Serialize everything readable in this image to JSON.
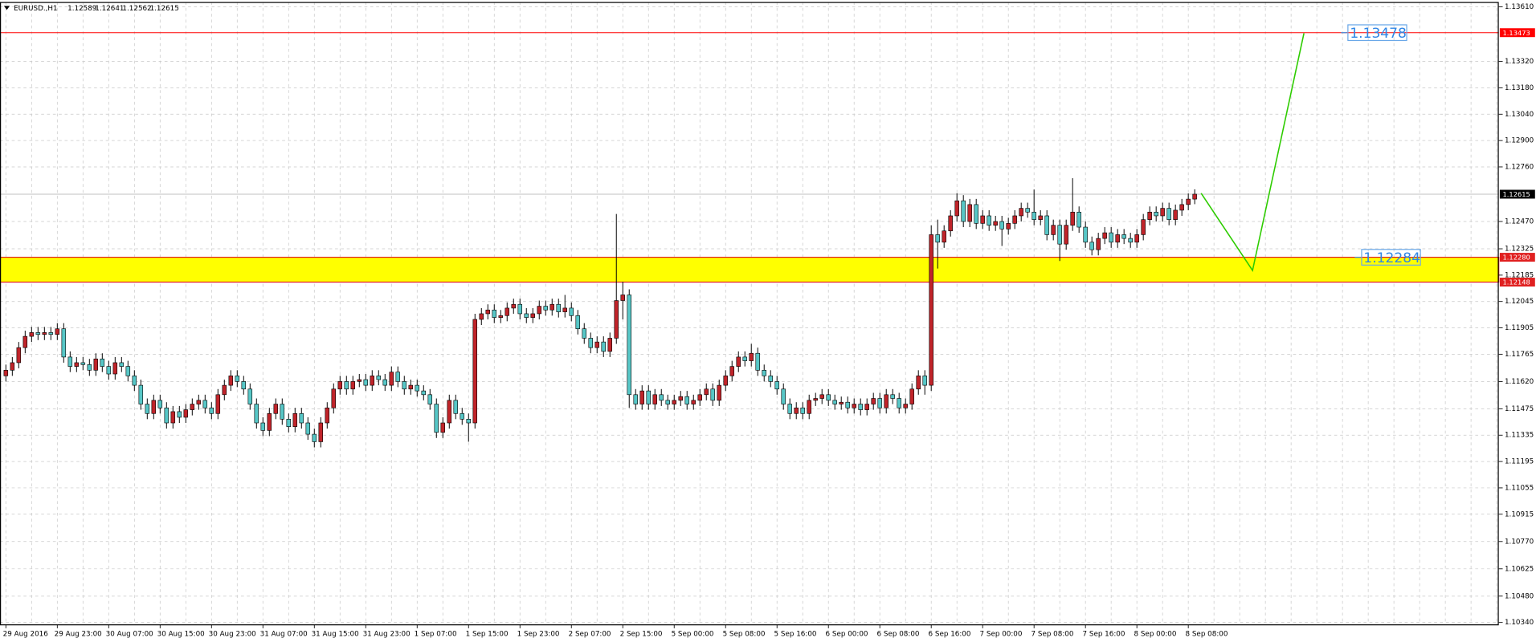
{
  "chart_data": {
    "type": "candlestick",
    "title": "EURUSD.,H1",
    "quote": [
      1.12589,
      1.12641,
      1.12562,
      1.12615
    ],
    "up_color": "#c0242a",
    "down_color": "#57c7c7",
    "grid": true,
    "ylim": [
      1.1033,
      1.13636
    ],
    "yticks": [
      {
        "value": 1.1361,
        "label": "1.13610"
      },
      {
        "value": 1.1332,
        "label": "1.13320"
      },
      {
        "value": 1.1318,
        "label": "1.13180"
      },
      {
        "value": 1.1304,
        "label": "1.13040"
      },
      {
        "value": 1.129,
        "label": "1.12900"
      },
      {
        "value": 1.1276,
        "label": "1.12760"
      },
      {
        "value": 1.1247,
        "label": "1.12470"
      },
      1.12325,
      1.12185,
      1.12045,
      1.11905,
      1.11765,
      {
        "value": 1.1162,
        "label": "1.11620"
      },
      1.11475,
      1.11335,
      1.11195,
      1.11055,
      1.10915,
      {
        "value": 1.1077,
        "label": "1.10770"
      },
      1.10625,
      {
        "value": 1.1048,
        "label": "1.10480"
      },
      {
        "value": 1.1034,
        "label": "1.10340"
      }
    ],
    "categories": [
      "29 Aug 2016",
      null,
      null,
      null,
      null,
      null,
      null,
      null,
      "29 Aug 23:00",
      null,
      null,
      null,
      null,
      null,
      null,
      null,
      "30 Aug 07:00",
      null,
      null,
      null,
      null,
      null,
      null,
      null,
      "30 Aug 15:00",
      null,
      null,
      null,
      null,
      null,
      null,
      null,
      "30 Aug 23:00",
      null,
      null,
      null,
      null,
      null,
      null,
      null,
      "31 Aug 07:00",
      null,
      null,
      null,
      null,
      null,
      null,
      null,
      "31 Aug 15:00",
      null,
      null,
      null,
      null,
      null,
      null,
      null,
      "31 Aug 23:00",
      null,
      null,
      null,
      null,
      null,
      null,
      null,
      "1 Sep 07:00",
      null,
      null,
      null,
      null,
      null,
      null,
      null,
      "1 Sep 15:00",
      null,
      null,
      null,
      null,
      null,
      null,
      null,
      "1 Sep 23:00",
      null,
      null,
      null,
      null,
      null,
      null,
      null,
      "2 Sep 07:00",
      null,
      null,
      null,
      null,
      null,
      null,
      null,
      "2 Sep 15:00",
      null,
      null,
      null,
      null,
      null,
      null,
      null,
      "5 Sep 00:00",
      null,
      null,
      null,
      null,
      null,
      null,
      null,
      "5 Sep 08:00",
      null,
      null,
      null,
      null,
      null,
      null,
      null,
      "5 Sep 16:00",
      null,
      null,
      null,
      null,
      null,
      null,
      null,
      "6 Sep 00:00",
      null,
      null,
      null,
      null,
      null,
      null,
      null,
      "6 Sep 08:00",
      null,
      null,
      null,
      null,
      null,
      null,
      null,
      "6 Sep 16:00",
      null,
      null,
      null,
      null,
      null,
      null,
      null,
      "7 Sep 00:00",
      null,
      null,
      null,
      null,
      null,
      null,
      null,
      "7 Sep 08:00",
      null,
      null,
      null,
      null,
      null,
      null,
      null,
      "7 Sep 16:00",
      null,
      null,
      null,
      null,
      null,
      null,
      null,
      "8 Sep 00:00",
      null,
      null,
      null,
      null,
      null,
      null,
      null,
      "8 Sep 08:00",
      null
    ],
    "open": [
      1.1165,
      1.1168,
      1.1172,
      1.118,
      1.1186,
      1.1188,
      1.1187,
      1.1188,
      1.1187,
      1.119,
      1.1175,
      1.117,
      1.1172,
      1.1171,
      1.1168,
      1.1174,
      1.117,
      1.1166,
      1.1172,
      1.117,
      1.1165,
      1.116,
      1.115,
      1.1145,
      1.1152,
      1.1148,
      1.114,
      1.1146,
      1.1143,
      1.1147,
      1.115,
      1.1152,
      1.1148,
      1.1145,
      1.1155,
      1.116,
      1.1165,
      1.1162,
      1.1158,
      1.115,
      1.114,
      1.1136,
      1.1145,
      1.115,
      1.1142,
      1.1138,
      1.1145,
      1.114,
      1.1134,
      1.113,
      1.114,
      1.1148,
      1.1158,
      1.1162,
      1.1158,
      1.1162,
      1.1163,
      1.116,
      1.1165,
      1.1163,
      1.116,
      1.1167,
      1.1162,
      1.1158,
      1.116,
      1.1157,
      1.1155,
      1.115,
      1.1135,
      1.114,
      1.1152,
      1.1145,
      1.1142,
      1.114,
      1.1195,
      1.1198,
      1.12,
      1.1196,
      1.1197,
      1.1201,
      1.1203,
      1.1198,
      1.1196,
      1.1198,
      1.1202,
      1.12,
      1.1203,
      1.1199,
      1.1201,
      1.1197,
      1.119,
      1.1185,
      1.118,
      1.1183,
      1.1178,
      1.1185,
      1.1205,
      1.1208,
      1.1155,
      1.115,
      1.1157,
      1.115,
      1.1155,
      1.1152,
      1.115,
      1.1152,
      1.1154,
      1.115,
      1.1152,
      1.1155,
      1.1158,
      1.1152,
      1.116,
      1.1165,
      1.117,
      1.1175,
      1.1173,
      1.1177,
      1.1168,
      1.1165,
      1.1162,
      1.1158,
      1.115,
      1.1145,
      1.1148,
      1.1145,
      1.1152,
      1.1153,
      1.1155,
      1.1152,
      1.115,
      1.1151,
      1.1148,
      1.115,
      1.1147,
      1.115,
      1.1153,
      1.1148,
      1.1155,
      1.1153,
      1.1148,
      1.115,
      1.1158,
      1.1165,
      1.116,
      1.124,
      1.1236,
      1.1242,
      1.125,
      1.1258,
      1.1247,
      1.1256,
      1.1246,
      1.125,
      1.1245,
      1.1247,
      1.1243,
      1.1246,
      1.125,
      1.1254,
      1.1252,
      1.1248,
      1.125,
      1.124,
      1.1245,
      1.1235,
      1.1245,
      1.1252,
      1.1244,
      1.1236,
      1.1232,
      1.1238,
      1.1241,
      1.1236,
      1.124,
      1.1238,
      1.1236,
      1.124,
      1.1248,
      1.1252,
      1.125,
      1.1254,
      1.1248,
      1.1253,
      1.1256,
      1.12589
    ],
    "high": [
      1.1171,
      1.1175,
      1.1183,
      1.1189,
      1.1191,
      1.1191,
      1.1191,
      1.1191,
      1.1193,
      1.1193,
      1.1178,
      1.1175,
      1.1175,
      1.1174,
      1.1177,
      1.1177,
      1.1173,
      1.1175,
      1.1175,
      1.1173,
      1.1168,
      1.1163,
      1.1153,
      1.1155,
      1.1155,
      1.1151,
      1.1149,
      1.1149,
      1.115,
      1.1153,
      1.1155,
      1.1155,
      1.1151,
      1.1158,
      1.1163,
      1.1168,
      1.1168,
      1.1165,
      1.1161,
      1.1153,
      1.1143,
      1.1148,
      1.1153,
      1.1153,
      1.1145,
      1.1148,
      1.1148,
      1.1143,
      1.1137,
      1.1143,
      1.1151,
      1.1161,
      1.1165,
      1.1165,
      1.1165,
      1.1166,
      1.1166,
      1.1168,
      1.1168,
      1.1166,
      1.117,
      1.117,
      1.1165,
      1.1163,
      1.1163,
      1.116,
      1.1158,
      1.1153,
      1.1143,
      1.1155,
      1.1155,
      1.1148,
      1.1145,
      1.1198,
      1.1201,
      1.1203,
      1.1203,
      1.12,
      1.1204,
      1.1206,
      1.1206,
      1.1201,
      1.1201,
      1.1205,
      1.1205,
      1.1206,
      1.1206,
      1.1208,
      1.1204,
      1.12,
      1.1193,
      1.1188,
      1.1186,
      1.1186,
      1.1188,
      1.1251,
      1.1215,
      1.1211,
      1.1158,
      1.116,
      1.116,
      1.1158,
      1.1158,
      1.1155,
      1.1155,
      1.1157,
      1.1157,
      1.1155,
      1.1158,
      1.1161,
      1.1161,
      1.1163,
      1.1168,
      1.1173,
      1.1178,
      1.1178,
      1.1182,
      1.118,
      1.1171,
      1.1168,
      1.1165,
      1.1161,
      1.1153,
      1.1151,
      1.1151,
      1.1155,
      1.1156,
      1.1158,
      1.1158,
      1.1155,
      1.1154,
      1.1154,
      1.1153,
      1.1153,
      1.1153,
      1.1156,
      1.1156,
      1.1158,
      1.1158,
      1.1156,
      1.1153,
      1.1161,
      1.1168,
      1.1168,
      1.1245,
      1.1248,
      1.1245,
      1.1253,
      1.1262,
      1.1261,
      1.1259,
      1.1259,
      1.1253,
      1.1253,
      1.125,
      1.125,
      1.1249,
      1.1253,
      1.1257,
      1.1257,
      1.1264,
      1.1253,
      1.1253,
      1.1248,
      1.1248,
      1.1248,
      1.127,
      1.1255,
      1.1247,
      1.1239,
      1.1241,
      1.1244,
      1.1244,
      1.1243,
      1.1243,
      1.1241,
      1.1243,
      1.1251,
      1.1255,
      1.1255,
      1.1257,
      1.1257,
      1.1256,
      1.1259,
      1.12619,
      1.12641
    ],
    "low": [
      1.1162,
      1.1165,
      1.1169,
      1.1177,
      1.1183,
      1.1184,
      1.1184,
      1.1184,
      1.1184,
      1.1172,
      1.1167,
      1.1167,
      1.1168,
      1.1165,
      1.1165,
      1.1167,
      1.1163,
      1.1163,
      1.1167,
      1.1162,
      1.1157,
      1.1147,
      1.1142,
      1.1142,
      1.1145,
      1.1137,
      1.1137,
      1.114,
      1.114,
      1.1144,
      1.1147,
      1.1145,
      1.1142,
      1.1142,
      1.1152,
      1.1157,
      1.1159,
      1.1155,
      1.1147,
      1.1137,
      1.1133,
      1.1133,
      1.1142,
      1.1139,
      1.1135,
      1.1135,
      1.1137,
      1.1131,
      1.1127,
      1.1127,
      1.1137,
      1.1145,
      1.1155,
      1.1155,
      1.1155,
      1.1159,
      1.1157,
      1.1157,
      1.116,
      1.1157,
      1.1157,
      1.1159,
      1.1155,
      1.1155,
      1.1154,
      1.1152,
      1.1147,
      1.1132,
      1.1132,
      1.1137,
      1.1142,
      1.1139,
      1.113,
      1.1137,
      1.1192,
      1.1195,
      1.1193,
      1.1193,
      1.1194,
      1.1198,
      1.1195,
      1.1193,
      1.1193,
      1.1195,
      1.1197,
      1.1197,
      1.1196,
      1.1196,
      1.1194,
      1.1187,
      1.1182,
      1.1177,
      1.1177,
      1.1175,
      1.1175,
      1.1182,
      1.1195,
      1.1148,
      1.1147,
      1.1147,
      1.1147,
      1.1147,
      1.1149,
      1.1147,
      1.1147,
      1.1149,
      1.1147,
      1.1147,
      1.1149,
      1.1152,
      1.1149,
      1.1149,
      1.1157,
      1.1162,
      1.1167,
      1.117,
      1.117,
      1.1165,
      1.1162,
      1.1159,
      1.1155,
      1.1147,
      1.1142,
      1.1142,
      1.1142,
      1.1142,
      1.1149,
      1.115,
      1.1149,
      1.1147,
      1.1147,
      1.1145,
      1.1145,
      1.1144,
      1.1144,
      1.1147,
      1.1145,
      1.1145,
      1.115,
      1.1145,
      1.1145,
      1.1147,
      1.1155,
      1.1155,
      1.1157,
      1.1222,
      1.1233,
      1.1239,
      1.1247,
      1.1244,
      1.1244,
      1.1243,
      1.1243,
      1.1242,
      1.1242,
      1.1234,
      1.124,
      1.1243,
      1.1247,
      1.1249,
      1.1245,
      1.1245,
      1.1237,
      1.1237,
      1.1226,
      1.1232,
      1.1242,
      1.1241,
      1.1233,
      1.1229,
      1.1229,
      1.1235,
      1.1233,
      1.1233,
      1.1235,
      1.1233,
      1.1233,
      1.1237,
      1.1245,
      1.1247,
      1.1247,
      1.1245,
      1.1245,
      1.125,
      1.1253,
      1.12562
    ],
    "close": [
      1.1168,
      1.1172,
      1.118,
      1.1186,
      1.1188,
      1.1187,
      1.1188,
      1.1187,
      1.119,
      1.1175,
      1.117,
      1.1172,
      1.1171,
      1.1168,
      1.1174,
      1.117,
      1.1166,
      1.1172,
      1.117,
      1.1165,
      1.116,
      1.115,
      1.1145,
      1.1152,
      1.1148,
      1.114,
      1.1146,
      1.1143,
      1.1147,
      1.115,
      1.1152,
      1.1148,
      1.1145,
      1.1155,
      1.116,
      1.1165,
      1.1162,
      1.1158,
      1.115,
      1.114,
      1.1136,
      1.1145,
      1.115,
      1.1142,
      1.1138,
      1.1145,
      1.114,
      1.1134,
      1.113,
      1.114,
      1.1148,
      1.1158,
      1.1162,
      1.1158,
      1.1162,
      1.1163,
      1.116,
      1.1165,
      1.1163,
      1.116,
      1.1167,
      1.1162,
      1.1158,
      1.116,
      1.1157,
      1.1155,
      1.115,
      1.1135,
      1.114,
      1.1152,
      1.1145,
      1.1142,
      1.114,
      1.1195,
      1.1198,
      1.12,
      1.1196,
      1.1197,
      1.1201,
      1.1203,
      1.1198,
      1.1196,
      1.1198,
      1.1202,
      1.12,
      1.1203,
      1.1199,
      1.1201,
      1.1197,
      1.119,
      1.1185,
      1.118,
      1.1183,
      1.1178,
      1.1185,
      1.1205,
      1.1208,
      1.1155,
      1.115,
      1.1157,
      1.115,
      1.1155,
      1.1152,
      1.115,
      1.1152,
      1.1154,
      1.115,
      1.1152,
      1.1155,
      1.1158,
      1.1152,
      1.116,
      1.1165,
      1.117,
      1.1175,
      1.1173,
      1.1177,
      1.1168,
      1.1165,
      1.1162,
      1.1158,
      1.115,
      1.1145,
      1.1148,
      1.1145,
      1.1152,
      1.1153,
      1.1155,
      1.1152,
      1.115,
      1.1151,
      1.1148,
      1.115,
      1.1147,
      1.115,
      1.1153,
      1.1148,
      1.1155,
      1.1153,
      1.1148,
      1.115,
      1.1158,
      1.1165,
      1.116,
      1.124,
      1.1236,
      1.1242,
      1.125,
      1.1258,
      1.1247,
      1.1256,
      1.1246,
      1.125,
      1.1245,
      1.1247,
      1.1243,
      1.1246,
      1.125,
      1.1254,
      1.1252,
      1.1248,
      1.125,
      1.124,
      1.1245,
      1.1235,
      1.1245,
      1.1252,
      1.1244,
      1.1236,
      1.1232,
      1.1238,
      1.1241,
      1.1236,
      1.124,
      1.1238,
      1.1236,
      1.124,
      1.1248,
      1.1252,
      1.125,
      1.1254,
      1.1248,
      1.1253,
      1.1256,
      1.12589,
      1.12615
    ],
    "hline": {
      "value": 1.13473,
      "color": "#ff0000"
    },
    "current_price": 1.12615,
    "zone": {
      "from": 1.12148,
      "to": {
        "value": 1.1228,
        "label": "1.12280"
      },
      "color": "#ffff00",
      "border": "#e02020"
    },
    "forecast": {
      "values": [
        1.1262,
        1.1221,
        1.1347
      ],
      "color": "#2ecc00"
    },
    "annotations": [
      "1.13478",
      "1.12284"
    ]
  }
}
